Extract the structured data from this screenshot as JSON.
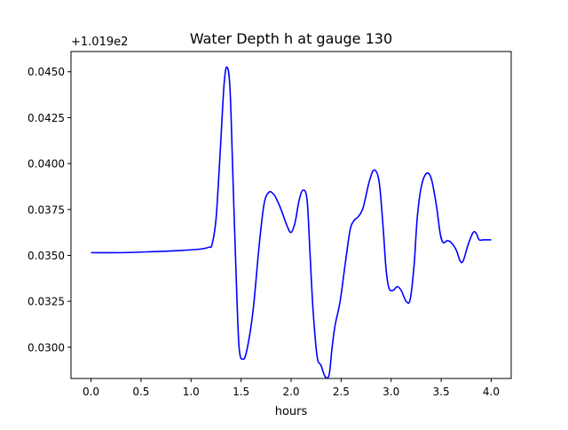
{
  "chart_data": {
    "type": "line",
    "title": "Water Depth h at gauge 130",
    "xlabel": "hours",
    "ylabel": "",
    "offset_label": "+1.019e2",
    "xlim": [
      -0.2,
      4.2
    ],
    "ylim": [
      0.0283,
      0.0461
    ],
    "xticks": [
      0.0,
      0.5,
      1.0,
      1.5,
      2.0,
      2.5,
      3.0,
      3.5,
      4.0
    ],
    "xtick_labels": [
      "0.0",
      "0.5",
      "1.0",
      "1.5",
      "2.0",
      "2.5",
      "3.0",
      "3.5",
      "4.0"
    ],
    "yticks": [
      0.03,
      0.0325,
      0.035,
      0.0375,
      0.04,
      0.0425,
      0.045
    ],
    "ytick_labels": [
      "0.0300",
      "0.0325",
      "0.0350",
      "0.0375",
      "0.0400",
      "0.0425",
      "0.0450"
    ],
    "grid": false,
    "series": [
      {
        "color": "#0000ff",
        "x": [
          0.0,
          0.3,
          0.6,
          0.9,
          1.1,
          1.18,
          1.21,
          1.25,
          1.29,
          1.33,
          1.36,
          1.39,
          1.42,
          1.45,
          1.48,
          1.52,
          1.56,
          1.62,
          1.68,
          1.73,
          1.78,
          1.83,
          1.86,
          1.9,
          1.96,
          2.0,
          2.04,
          2.08,
          2.12,
          2.16,
          2.19,
          2.22,
          2.26,
          2.3,
          2.34,
          2.38,
          2.41,
          2.44,
          2.49,
          2.54,
          2.59,
          2.63,
          2.67,
          2.72,
          2.78,
          2.83,
          2.88,
          2.92,
          2.95,
          2.98,
          3.02,
          3.06,
          3.1,
          3.15,
          3.19,
          3.23,
          3.26,
          3.3,
          3.35,
          3.4,
          3.45,
          3.49,
          3.52,
          3.56,
          3.6,
          3.65,
          3.69,
          3.72,
          3.77,
          3.82,
          3.85,
          3.88,
          3.92,
          3.96,
          3.99,
          4.0
        ],
        "y": [
          0.03515,
          0.03515,
          0.0352,
          0.03527,
          0.03535,
          0.03545,
          0.0356,
          0.037,
          0.0405,
          0.0443,
          0.04525,
          0.044,
          0.039,
          0.034,
          0.03,
          0.02935,
          0.0299,
          0.032,
          0.0355,
          0.0378,
          0.03845,
          0.0383,
          0.038,
          0.0375,
          0.0366,
          0.03625,
          0.0368,
          0.038,
          0.03855,
          0.038,
          0.035,
          0.032,
          0.0295,
          0.029,
          0.0284,
          0.0285,
          0.03,
          0.0312,
          0.0325,
          0.0345,
          0.0364,
          0.0369,
          0.0371,
          0.0376,
          0.039,
          0.03965,
          0.039,
          0.0365,
          0.0342,
          0.0332,
          0.0331,
          0.0333,
          0.0331,
          0.0325,
          0.0326,
          0.0345,
          0.037,
          0.0387,
          0.03945,
          0.0392,
          0.0378,
          0.0362,
          0.0357,
          0.0358,
          0.0357,
          0.0353,
          0.0347,
          0.0347,
          0.0356,
          0.03625,
          0.0362,
          0.03585,
          0.03585,
          0.03585,
          0.03585,
          0.03585
        ]
      }
    ]
  }
}
